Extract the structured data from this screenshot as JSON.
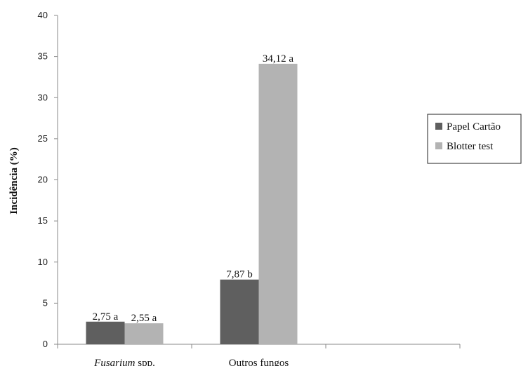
{
  "chart_data": {
    "type": "bar",
    "title": "",
    "xlabel": "",
    "ylabel": "Incidência (%)",
    "ylim": [
      0,
      40
    ],
    "yticks": [
      0,
      5,
      10,
      15,
      20,
      25,
      30,
      35,
      40
    ],
    "grid": false,
    "legend_position": "right",
    "categories": [
      {
        "label_italic": "Fusarium",
        "label_rest": " spp."
      },
      {
        "label_italic": "",
        "label_rest": "Outros fungos"
      },
      {
        "label_italic": "",
        "label_rest": ""
      }
    ],
    "series": [
      {
        "name": "Papel Cartão",
        "color": "#5f5f5f",
        "values": [
          2.75,
          7.87,
          null
        ],
        "labels": [
          "2,75 a",
          "7,87 b",
          ""
        ]
      },
      {
        "name": "Blotter test",
        "color": "#b3b3b3",
        "values": [
          2.55,
          34.12,
          null
        ],
        "labels": [
          "2,55 a",
          "34,12 a",
          ""
        ]
      }
    ]
  }
}
